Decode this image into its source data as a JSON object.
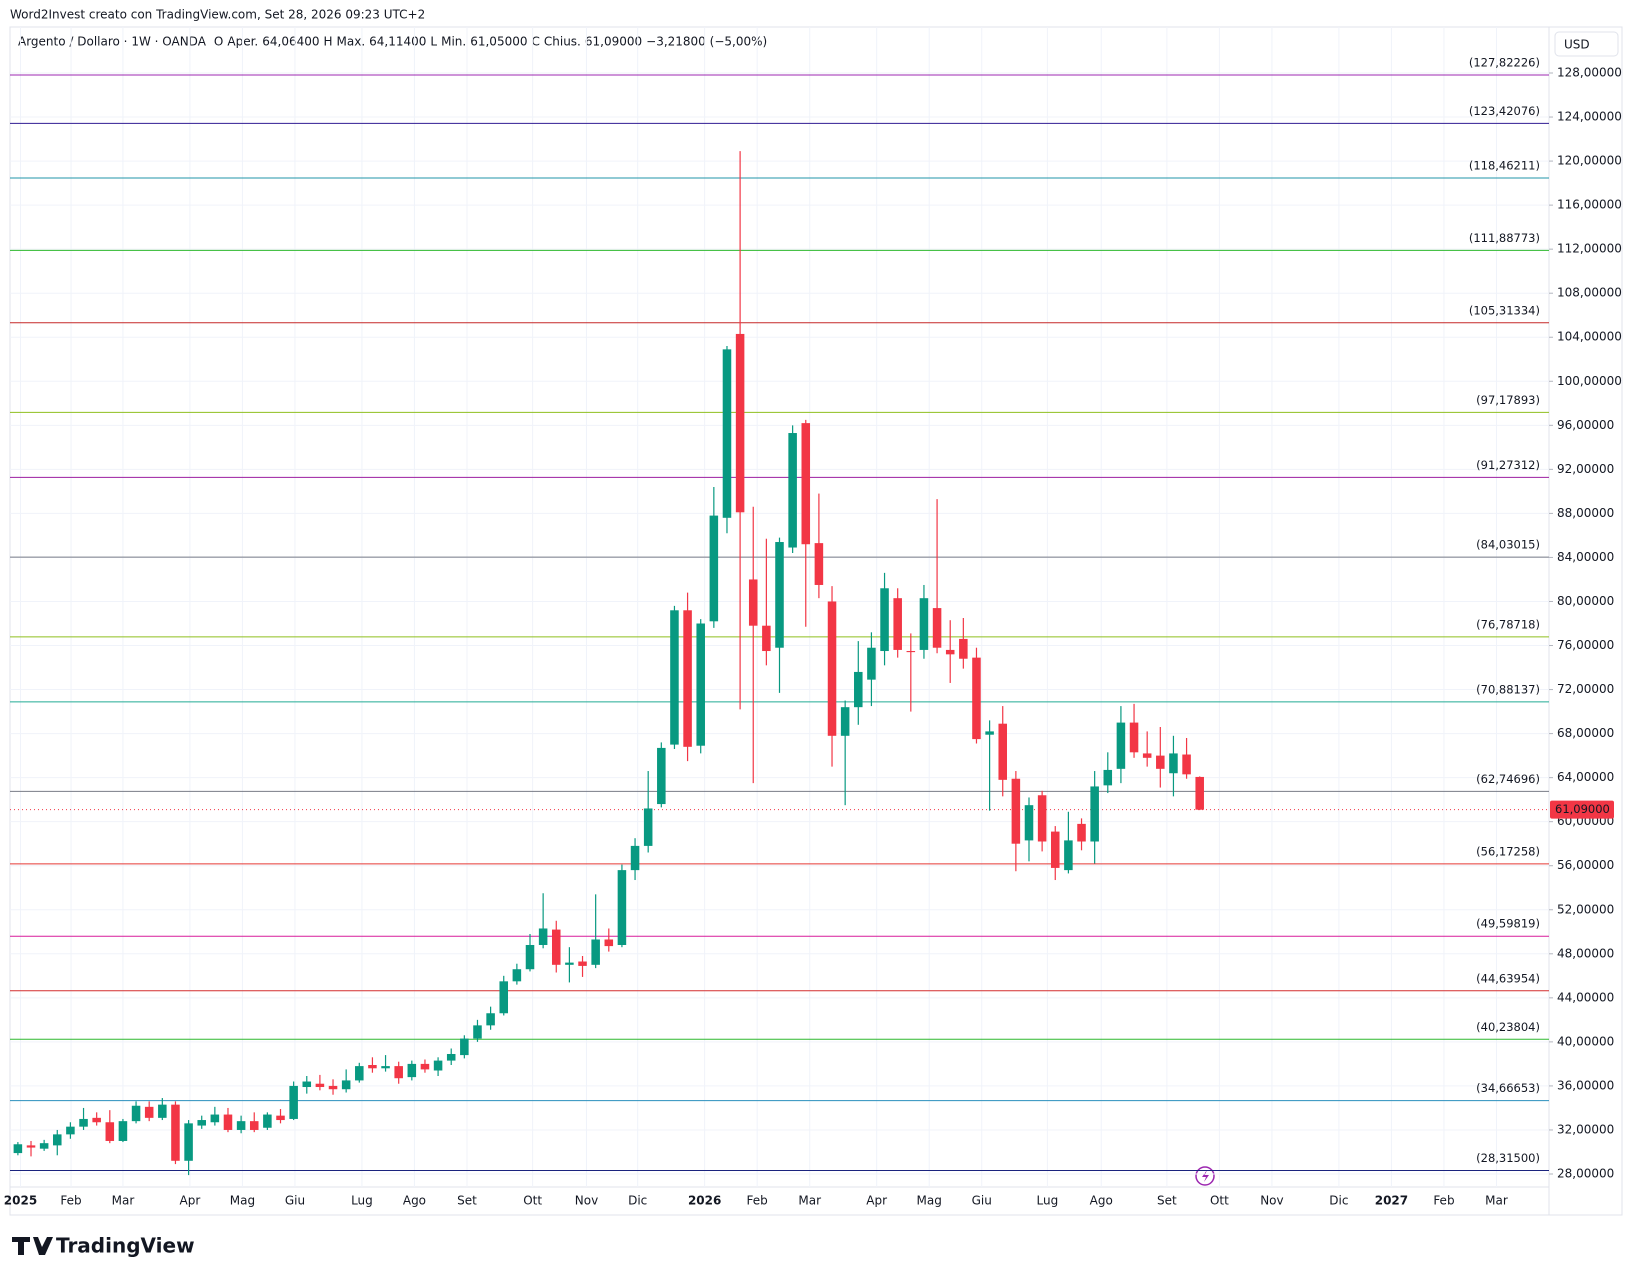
{
  "chart_data": {
    "type": "candlestick",
    "header": "Word2Invest creato con TradingView.com, Set 28, 2026 09:23 UTC+2",
    "legend": [
      {
        "text": "Argento / Dollaro · 1W · OANDA",
        "color": "#131722"
      },
      {
        "text": "O",
        "color": "#131722"
      },
      {
        "text": "Aper.",
        "color": "#131722"
      },
      {
        "text": "64,06400",
        "color": "#f23645"
      },
      {
        "text": "H",
        "color": "#131722"
      },
      {
        "text": "Max.",
        "color": "#131722"
      },
      {
        "text": "64,11400",
        "color": "#f23645"
      },
      {
        "text": "L",
        "color": "#131722"
      },
      {
        "text": "Min.",
        "color": "#131722"
      },
      {
        "text": "61,05000",
        "color": "#f23645"
      },
      {
        "text": "C",
        "color": "#131722"
      },
      {
        "text": "Chius.",
        "color": "#131722"
      },
      {
        "text": "61,09000",
        "color": "#f23645"
      },
      {
        "text": "−3,21800 (−5,00%)",
        "color": "#f23645"
      }
    ],
    "currency": "USD",
    "brand": "TradingView",
    "up_color": "#089981",
    "down_color": "#f23645",
    "grid": true,
    "x": [
      0,
      1,
      2,
      3,
      4,
      5,
      6,
      7,
      8,
      9,
      10,
      11,
      12,
      13,
      14,
      15,
      16,
      17,
      18,
      19,
      20,
      21,
      22,
      23,
      24,
      25,
      26,
      27,
      28,
      29,
      30,
      31,
      32,
      33,
      34,
      35,
      36,
      37,
      38,
      39,
      40,
      41,
      42,
      43,
      44,
      45,
      46,
      47,
      48,
      49,
      50,
      51,
      52,
      53,
      54,
      55,
      56,
      57,
      58,
      59,
      60,
      61,
      62,
      63,
      64,
      65,
      66,
      67,
      68,
      69,
      70,
      71,
      72,
      73,
      74,
      75,
      76,
      77,
      78,
      79,
      80,
      81,
      82,
      83,
      84,
      85,
      86,
      87,
      88,
      89,
      90
    ],
    "open": [
      29.9,
      30.6,
      30.3,
      30.6,
      31.6,
      32.3,
      33.1,
      32.7,
      31.0,
      32.8,
      34.1,
      33.1,
      34.3,
      29.2,
      32.4,
      32.7,
      33.4,
      32.0,
      32.8,
      32.2,
      33.3,
      33.0,
      35.9,
      36.2,
      36.0,
      35.7,
      36.5,
      37.9,
      37.6,
      37.8,
      36.8,
      38.0,
      37.4,
      38.3,
      38.8,
      40.3,
      41.5,
      42.6,
      45.5,
      46.6,
      48.8,
      50.2,
      47.0,
      47.3,
      47.0,
      49.3,
      48.8,
      55.6,
      57.8,
      61.6,
      67.0,
      79.2,
      66.9,
      78.2,
      87.6,
      104.3,
      82.0,
      77.8,
      75.8,
      84.9,
      96.2,
      85.3,
      80.0,
      67.8,
      70.4,
      72.9,
      75.5,
      80.3,
      75.5,
      75.6,
      79.4,
      75.6,
      76.6,
      74.9,
      67.9,
      68.9,
      63.9,
      58.3,
      62.4,
      59.1,
      55.6,
      59.8,
      58.2,
      63.3,
      64.8,
      69.0,
      66.2,
      66.0,
      64.4,
      66.1,
      64.064
    ],
    "high": [
      30.9,
      31.0,
      31.1,
      32.0,
      32.7,
      34.0,
      33.6,
      33.8,
      33.0,
      34.6,
      34.6,
      34.9,
      34.6,
      32.9,
      33.3,
      34.1,
      34.0,
      33.3,
      33.6,
      33.6,
      33.9,
      36.4,
      36.9,
      37.0,
      36.6,
      37.5,
      38.1,
      38.6,
      38.8,
      38.2,
      38.3,
      38.4,
      38.6,
      39.4,
      40.6,
      42.0,
      43.2,
      46.0,
      47.1,
      49.8,
      53.5,
      51.0,
      48.6,
      47.8,
      53.4,
      50.3,
      56.1,
      58.5,
      64.6,
      67.2,
      79.6,
      80.8,
      78.4,
      90.4,
      103.2,
      120.9,
      88.6,
      85.7,
      85.8,
      96.0,
      96.5,
      89.8,
      81.4,
      71.0,
      76.4,
      77.2,
      82.6,
      81.2,
      77.1,
      81.5,
      89.3,
      78.3,
      78.5,
      75.8,
      69.2,
      70.5,
      64.6,
      62.2,
      62.8,
      59.6,
      60.9,
      60.3,
      64.6,
      66.3,
      70.5,
      70.7,
      68.2,
      68.6,
      67.8,
      67.6,
      64.114
    ],
    "low": [
      29.7,
      29.6,
      30.1,
      29.7,
      31.2,
      32.0,
      32.4,
      30.8,
      30.9,
      32.6,
      32.8,
      32.9,
      28.9,
      27.9,
      32.1,
      32.4,
      31.8,
      31.7,
      31.8,
      32.0,
      32.6,
      32.9,
      35.3,
      35.6,
      35.2,
      35.4,
      36.3,
      37.2,
      37.3,
      36.2,
      36.5,
      37.2,
      36.9,
      37.9,
      38.5,
      40.0,
      41.1,
      42.4,
      45.2,
      46.4,
      48.5,
      46.3,
      45.4,
      45.9,
      46.7,
      48.2,
      48.6,
      54.7,
      57.2,
      61.3,
      66.6,
      65.5,
      66.2,
      77.6,
      86.2,
      70.2,
      63.5,
      74.2,
      71.7,
      84.4,
      77.7,
      80.3,
      65.0,
      61.5,
      68.8,
      70.5,
      74.2,
      74.9,
      70.0,
      74.8,
      75.3,
      72.6,
      73.9,
      67.1,
      61.0,
      62.3,
      55.5,
      56.4,
      57.3,
      54.7,
      55.3,
      57.4,
      56.2,
      62.6,
      63.5,
      65.8,
      65.0,
      63.1,
      62.3,
      63.9,
      61.05
    ],
    "close": [
      30.7,
      30.4,
      30.8,
      31.6,
      32.3,
      33.0,
      32.7,
      31.0,
      32.8,
      34.2,
      33.1,
      34.3,
      29.2,
      32.6,
      32.9,
      33.4,
      32.0,
      32.8,
      32.0,
      33.4,
      32.9,
      36.0,
      36.4,
      35.9,
      35.7,
      36.5,
      37.8,
      37.6,
      37.8,
      36.7,
      38.0,
      37.5,
      38.3,
      38.9,
      40.3,
      41.5,
      42.6,
      45.5,
      46.6,
      48.8,
      50.3,
      47.0,
      47.2,
      46.9,
      49.3,
      48.7,
      55.6,
      57.8,
      61.2,
      66.7,
      79.2,
      66.8,
      78.0,
      87.8,
      102.9,
      88.1,
      77.8,
      75.5,
      85.4,
      95.3,
      85.2,
      81.5,
      67.8,
      70.4,
      73.6,
      75.8,
      81.2,
      75.6,
      75.4,
      80.3,
      75.8,
      75.2,
      74.8,
      67.5,
      68.2,
      63.8,
      58.0,
      61.5,
      58.2,
      55.8,
      58.3,
      58.2,
      63.2,
      64.7,
      69.0,
      66.3,
      65.8,
      64.8,
      66.2,
      64.3,
      61.09
    ],
    "xlim": [
      -0.6,
      116.6
    ],
    "xticks": [
      {
        "value": 0.2,
        "label": "2025"
      },
      {
        "value": 4.05,
        "label": "Feb"
      },
      {
        "value": 8.0,
        "label": "Mar"
      },
      {
        "value": 13.1,
        "label": "Apr"
      },
      {
        "value": 17.1,
        "label": "Mag"
      },
      {
        "value": 21.1,
        "label": "Giu"
      },
      {
        "value": 26.2,
        "label": "Lug"
      },
      {
        "value": 30.2,
        "label": "Ago"
      },
      {
        "value": 34.2,
        "label": "Set"
      },
      {
        "value": 39.2,
        "label": "Ott"
      },
      {
        "value": 43.3,
        "label": "Nov"
      },
      {
        "value": 47.2,
        "label": "Dic"
      },
      {
        "value": 52.3,
        "label": "2026"
      },
      {
        "value": 56.3,
        "label": "Feb"
      },
      {
        "value": 60.3,
        "label": "Mar"
      },
      {
        "value": 65.4,
        "label": "Apr"
      },
      {
        "value": 69.4,
        "label": "Mag"
      },
      {
        "value": 73.4,
        "label": "Giu"
      },
      {
        "value": 78.4,
        "label": "Lug"
      },
      {
        "value": 82.5,
        "label": "Ago"
      },
      {
        "value": 87.5,
        "label": "Set"
      },
      {
        "value": 91.5,
        "label": "Ott"
      },
      {
        "value": 95.5,
        "label": "Nov"
      },
      {
        "value": 100.6,
        "label": "Dic"
      },
      {
        "value": 104.6,
        "label": "2027"
      },
      {
        "value": 108.6,
        "label": "Feb"
      },
      {
        "value": 112.6,
        "label": "Mar"
      }
    ],
    "ylim": [
      28,
      128
    ],
    "yticks": [
      {
        "value": 28,
        "label": "28,00000"
      },
      {
        "value": 32,
        "label": "32,00000"
      },
      {
        "value": 36,
        "label": "36,00000"
      },
      {
        "value": 40,
        "label": "40,00000"
      },
      {
        "value": 44,
        "label": "44,00000"
      },
      {
        "value": 48,
        "label": "48,00000"
      },
      {
        "value": 52,
        "label": "52,00000"
      },
      {
        "value": 56,
        "label": "56,00000"
      },
      {
        "value": 60,
        "label": "60,00000"
      },
      {
        "value": 64,
        "label": "64,00000"
      },
      {
        "value": 68,
        "label": "68,00000"
      },
      {
        "value": 72,
        "label": "72,00000"
      },
      {
        "value": 76,
        "label": "76,00000"
      },
      {
        "value": 80,
        "label": "80,00000"
      },
      {
        "value": 84,
        "label": "84,00000"
      },
      {
        "value": 88,
        "label": "88,00000"
      },
      {
        "value": 92,
        "label": "92,00000"
      },
      {
        "value": 96,
        "label": "96,00000"
      },
      {
        "value": 100,
        "label": "100,00000"
      },
      {
        "value": 104,
        "label": "104,00000"
      },
      {
        "value": 108,
        "label": "108,00000"
      },
      {
        "value": 112,
        "label": "112,00000"
      },
      {
        "value": 116,
        "label": "116,00000"
      },
      {
        "value": 120,
        "label": "120,00000"
      },
      {
        "value": 124,
        "label": "124,00000"
      },
      {
        "value": 128,
        "label": "128,00000"
      }
    ],
    "levels": [
      {
        "value": 127.82226,
        "label": "(127,82226)",
        "color": "#9c27b0"
      },
      {
        "value": 123.42076,
        "label": "(123,42076)",
        "color": "#311b92"
      },
      {
        "value": 118.46211,
        "label": "(118,46211)",
        "color": "#2196a8"
      },
      {
        "value": 111.88773,
        "label": "(111,88773)",
        "color": "#2eb82e"
      },
      {
        "value": 105.31334,
        "label": "(105,31334)",
        "color": "#c62828"
      },
      {
        "value": 97.17893,
        "label": "(97,17893)",
        "color": "#8fbf1f"
      },
      {
        "value": 91.27312,
        "label": "(91,27312)",
        "color": "#9c1ea0"
      },
      {
        "value": 84.03015,
        "label": "(84,03015)",
        "color": "#787b86"
      },
      {
        "value": 76.78718,
        "label": "(76,78718)",
        "color": "#8fbf1f"
      },
      {
        "value": 70.88137,
        "label": "(70,88137)",
        "color": "#22ab94"
      },
      {
        "value": 62.74696,
        "label": "(62,74696)",
        "color": "#787b86"
      },
      {
        "value": 56.17258,
        "label": "(56,17258)",
        "color": "#e53935"
      },
      {
        "value": 49.59819,
        "label": "(49,59819)",
        "color": "#d81b9c"
      },
      {
        "value": 44.63954,
        "label": "(44,63954)",
        "color": "#d32f2f"
      },
      {
        "value": 40.23804,
        "label": "(40,23804)",
        "color": "#2eb82e"
      },
      {
        "value": 34.66653,
        "label": "(34,66653)",
        "color": "#2a8fbd"
      },
      {
        "value": 28.315,
        "label": "(28,31500)",
        "color": "#1a237e"
      }
    ],
    "last_price": {
      "value": 61.09,
      "label": "61,09000",
      "color": "#f23645"
    }
  }
}
